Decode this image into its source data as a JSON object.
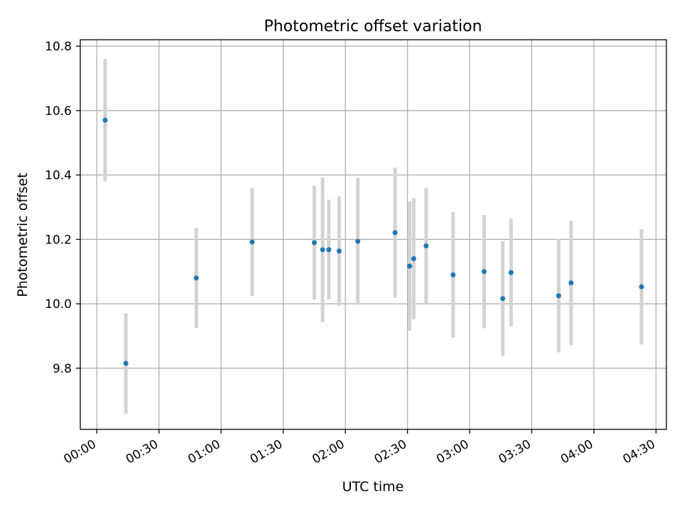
{
  "chart_data": {
    "type": "scatter",
    "title": "Photometric offset variation",
    "xlabel": "UTC time",
    "ylabel": "Photometric offset",
    "x_unit": "UTC hh:mm",
    "xlim": [
      "-00:08",
      "04:35"
    ],
    "ylim": [
      9.61,
      10.82
    ],
    "xticks": [
      "00:00",
      "00:30",
      "01:00",
      "01:30",
      "02:00",
      "02:30",
      "03:00",
      "03:30",
      "04:00",
      "04:30"
    ],
    "yticks": [
      9.8,
      10.0,
      10.2,
      10.4,
      10.6,
      10.8
    ],
    "grid": true,
    "series": [
      {
        "marker_color": "#1f77b4",
        "errorbar_color": "#d3d3d3",
        "points": [
          {
            "x": "00:04",
            "y": 10.57,
            "yerr": 0.19
          },
          {
            "x": "00:14",
            "y": 9.815,
            "yerr": 0.156
          },
          {
            "x": "00:48",
            "y": 10.08,
            "yerr": 0.155
          },
          {
            "x": "01:15",
            "y": 10.192,
            "yerr": 0.168
          },
          {
            "x": "01:45",
            "y": 10.19,
            "yerr": 0.177
          },
          {
            "x": "01:49",
            "y": 10.168,
            "yerr": 0.225
          },
          {
            "x": "01:52",
            "y": 10.168,
            "yerr": 0.155
          },
          {
            "x": "01:57",
            "y": 10.164,
            "yerr": 0.17
          },
          {
            "x": "02:06",
            "y": 10.194,
            "yerr": 0.197
          },
          {
            "x": "02:24",
            "y": 10.221,
            "yerr": 0.202
          },
          {
            "x": "02:31",
            "y": 10.117,
            "yerr": 0.201
          },
          {
            "x": "02:33",
            "y": 10.14,
            "yerr": 0.188
          },
          {
            "x": "02:39",
            "y": 10.18,
            "yerr": 0.179
          },
          {
            "x": "02:52",
            "y": 10.09,
            "yerr": 0.195
          },
          {
            "x": "03:07",
            "y": 10.1,
            "yerr": 0.176
          },
          {
            "x": "03:16",
            "y": 10.016,
            "yerr": 0.178
          },
          {
            "x": "03:20",
            "y": 10.097,
            "yerr": 0.167
          },
          {
            "x": "03:43",
            "y": 10.025,
            "yerr": 0.176
          },
          {
            "x": "03:49",
            "y": 10.065,
            "yerr": 0.193
          },
          {
            "x": "04:23",
            "y": 10.053,
            "yerr": 0.179
          }
        ]
      }
    ]
  }
}
